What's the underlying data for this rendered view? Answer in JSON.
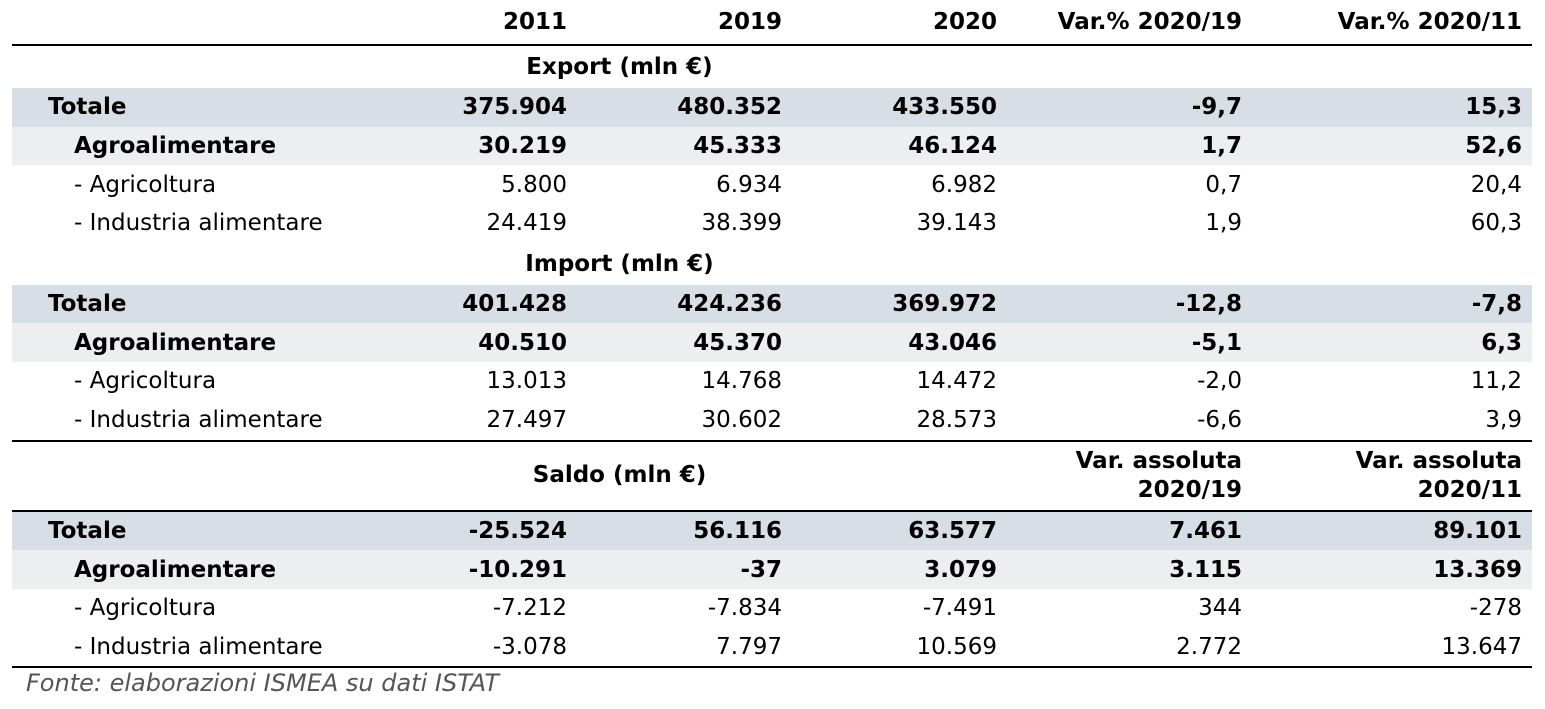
{
  "columns": [
    "2011",
    "2019",
    "2020",
    "Var.% 2020/19",
    "Var.% 2020/11"
  ],
  "sections": [
    {
      "title": "Export (mln €)",
      "rows": [
        {
          "label": "Totale",
          "values": [
            "375.904",
            "480.352",
            "433.550",
            "-9,7",
            "15,3"
          ]
        },
        {
          "label": "Agroalimentare",
          "values": [
            "30.219",
            "45.333",
            "46.124",
            "1,7",
            "52,6"
          ]
        },
        {
          "label": "- Agricoltura",
          "values": [
            "5.800",
            "6.934",
            "6.982",
            "0,7",
            "20,4"
          ]
        },
        {
          "label": "- Industria alimentare",
          "values": [
            "24.419",
            "38.399",
            "39.143",
            "1,9",
            "60,3"
          ]
        }
      ]
    },
    {
      "title": "Import (mln €)",
      "rows": [
        {
          "label": "Totale",
          "values": [
            "401.428",
            "424.236",
            "369.972",
            "-12,8",
            "-7,8"
          ]
        },
        {
          "label": "Agroalimentare",
          "values": [
            "40.510",
            "45.370",
            "43.046",
            "-5,1",
            "6,3"
          ]
        },
        {
          "label": "- Agricoltura",
          "values": [
            "13.013",
            "14.768",
            "14.472",
            "-2,0",
            "11,2"
          ]
        },
        {
          "label": "- Industria alimentare",
          "values": [
            "27.497",
            "30.602",
            "28.573",
            "-6,6",
            "3,9"
          ]
        }
      ]
    },
    {
      "title": "Saldo (mln €)",
      "var_headers": [
        [
          "Var. assoluta",
          "2020/19"
        ],
        [
          "Var. assoluta",
          "2020/11"
        ]
      ],
      "rows": [
        {
          "label": "Totale",
          "values": [
            "-25.524",
            "56.116",
            "63.577",
            "7.461",
            "89.101"
          ]
        },
        {
          "label": "Agroalimentare",
          "values": [
            "-10.291",
            "-37",
            "3.079",
            "3.115",
            "13.369"
          ]
        },
        {
          "label": "- Agricoltura",
          "values": [
            "-7.212",
            "-7.834",
            "-7.491",
            "344",
            "-278"
          ]
        },
        {
          "label": "- Industria alimentare",
          "values": [
            "-3.078",
            "7.797",
            "10.569",
            "2.772",
            "13.647"
          ]
        }
      ]
    }
  ],
  "source": "Fonte: elaborazioni ISMEA su dati ISTAT",
  "colors": {
    "total_row_bg": "#d7dee6",
    "agro_row_bg": "#eceeef",
    "source_text": "#555555"
  }
}
